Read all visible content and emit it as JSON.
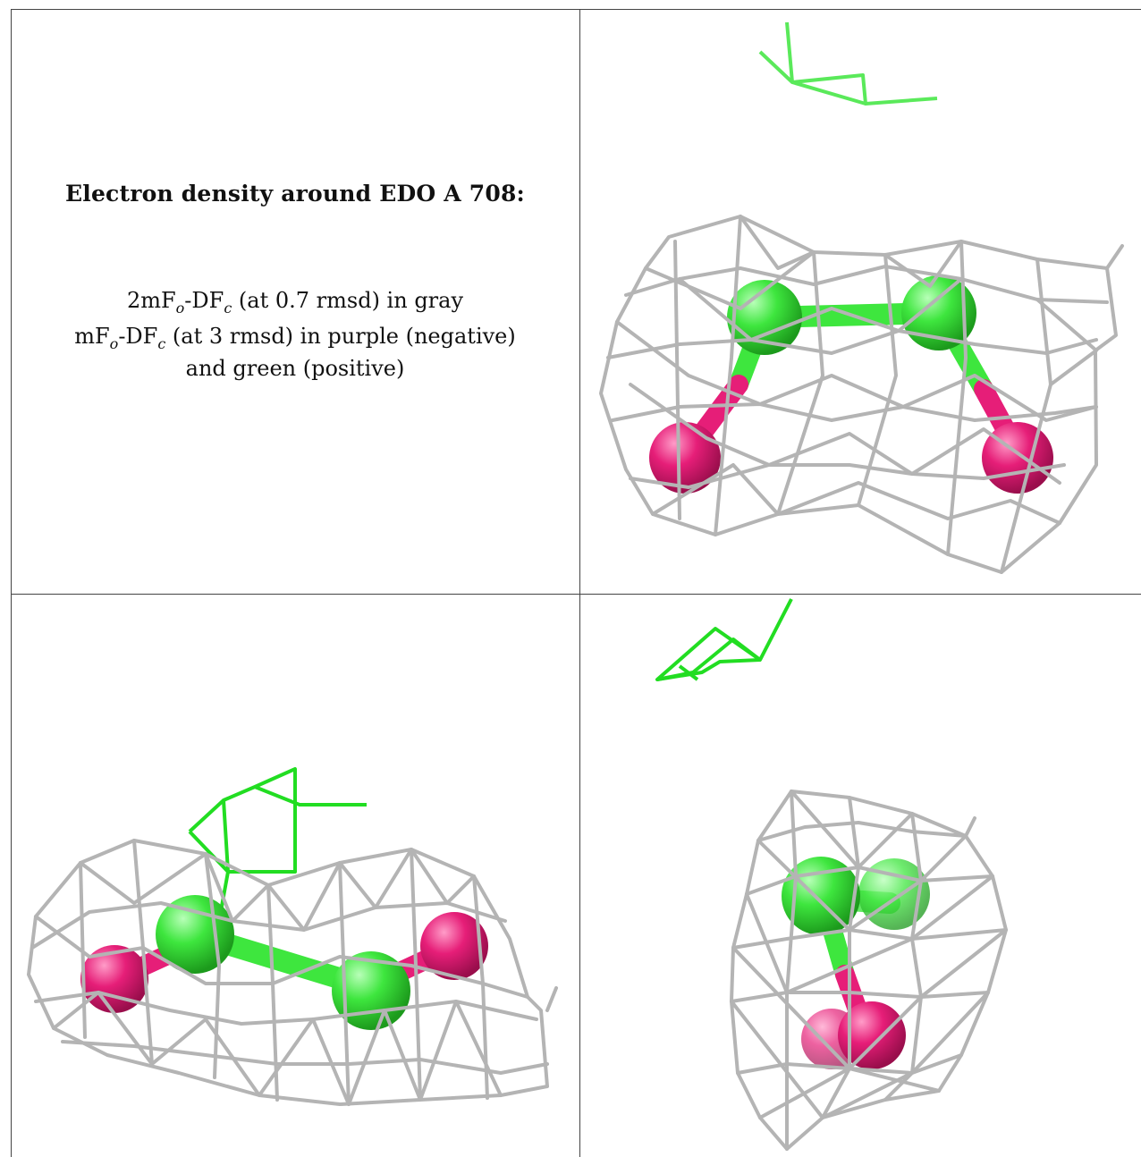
{
  "caption": {
    "title": "Electron density around EDO A 708:",
    "map_2fofc": {
      "prefix": "2mF",
      "sub_o": "o",
      "mid": "-DF",
      "sub_c": "c",
      "rest": " (at 0.7 rmsd) in gray"
    },
    "map_fofc": {
      "prefix": "mF",
      "sub_o": "o",
      "mid": "-DF",
      "sub_c": "c",
      "rest": " (at 3 rmsd) in purple (negative)"
    },
    "map_fofc_cont": "and green (positive)"
  },
  "colors": {
    "mesh": "#b4b4b4",
    "carbon": "#3ee63e",
    "oxygen": "#e61e78",
    "neighbor": "#22dd22",
    "border": "#444444"
  },
  "panels": [
    {
      "id": "view-1",
      "view": "top-right"
    },
    {
      "id": "view-2",
      "view": "bottom-left"
    },
    {
      "id": "view-3",
      "view": "bottom-right"
    }
  ]
}
